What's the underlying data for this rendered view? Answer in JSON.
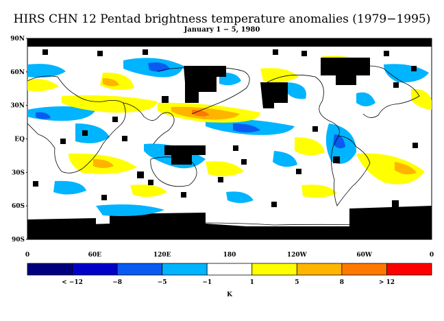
{
  "title": "HIRS CHN 12 Pentad brightness temperature anomalies (1979−1995)",
  "subtitle": "January 1 − 5, 1980",
  "lat_labels": [
    "90N",
    "60N",
    "30N",
    "EQ",
    "30S",
    "60S",
    "90S"
  ],
  "lon_labels": [
    "0",
    "60E",
    "120E",
    "180",
    "120W",
    "60W",
    "0"
  ],
  "colorbar": {
    "labels": [
      "< −12",
      "−8",
      "−5",
      "−1",
      "1",
      "5",
      "8",
      "> 12"
    ],
    "colors": [
      "#00007f",
      "#0000c8",
      "#0a5af0",
      "#00b4ff",
      "#ffffff",
      "#ffff00",
      "#ffb400",
      "#ff7800",
      "#ff0000"
    ],
    "unit": "K"
  },
  "map_colors": {
    "missing": "#000000",
    "cold_strong": "#0a5af0",
    "cold": "#00b4ff",
    "warm": "#ffff00",
    "warm_strong": "#ffb400",
    "hot": "#ff7800",
    "coast": "#000000"
  }
}
